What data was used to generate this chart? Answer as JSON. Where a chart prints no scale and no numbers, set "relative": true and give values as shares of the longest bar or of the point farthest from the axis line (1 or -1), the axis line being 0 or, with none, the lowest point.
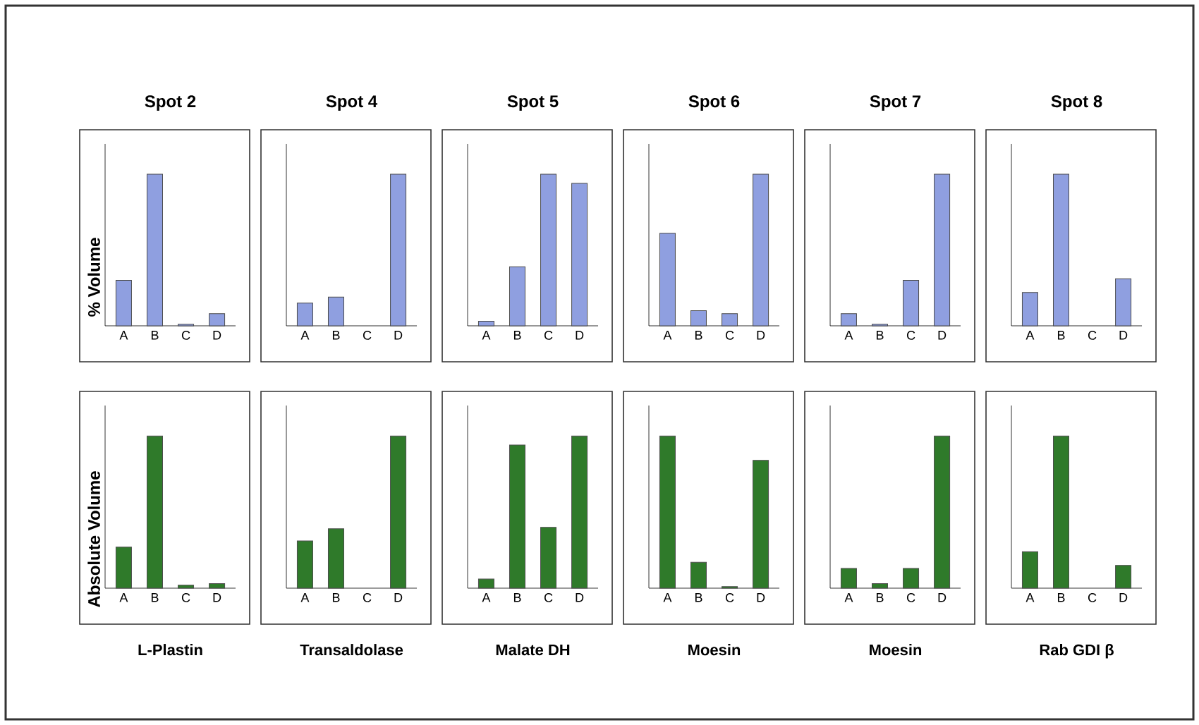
{
  "chart_data": [
    {
      "type": "bar",
      "title": "Spot 2",
      "ylabel": "% Volume",
      "relative": true,
      "color": "#8f9fe0",
      "categories": [
        "A",
        "B",
        "C",
        "D"
      ],
      "values": [
        0.3,
        1,
        0.01,
        0.08
      ]
    },
    {
      "type": "bar",
      "title": "Spot 4",
      "relative": true,
      "color": "#8f9fe0",
      "categories": [
        "A",
        "B",
        "C",
        "D"
      ],
      "values": [
        0.15,
        0.19,
        null,
        1
      ]
    },
    {
      "type": "bar",
      "title": "Spot 5",
      "relative": true,
      "color": "#8f9fe0",
      "categories": [
        "A",
        "B",
        "C",
        "D"
      ],
      "values": [
        0.03,
        0.39,
        1,
        0.94
      ]
    },
    {
      "type": "bar",
      "title": "Spot 6",
      "relative": true,
      "color": "#8f9fe0",
      "categories": [
        "A",
        "B",
        "C",
        "D"
      ],
      "values": [
        0.61,
        0.1,
        0.08,
        1
      ]
    },
    {
      "type": "bar",
      "title": "Spot 7",
      "relative": true,
      "color": "#8f9fe0",
      "categories": [
        "A",
        "B",
        "C",
        "D"
      ],
      "values": [
        0.08,
        0.01,
        0.3,
        1
      ]
    },
    {
      "type": "bar",
      "title": "Spot 8",
      "relative": true,
      "color": "#8f9fe0",
      "categories": [
        "A",
        "B",
        "C",
        "D"
      ],
      "values": [
        0.22,
        1,
        null,
        0.31
      ]
    },
    {
      "type": "bar",
      "xlabel": "L-Plastin",
      "ylabel": "Absolute Volume",
      "relative": true,
      "color": "#2f7a2a",
      "categories": [
        "A",
        "B",
        "C",
        "D"
      ],
      "values": [
        0.27,
        1,
        0.02,
        0.03
      ]
    },
    {
      "type": "bar",
      "xlabel": "Transaldolase",
      "relative": true,
      "color": "#2f7a2a",
      "categories": [
        "A",
        "B",
        "C",
        "D"
      ],
      "values": [
        0.31,
        0.39,
        null,
        1
      ]
    },
    {
      "type": "bar",
      "xlabel": "Malate DH",
      "relative": true,
      "color": "#2f7a2a",
      "categories": [
        "A",
        "B",
        "C",
        "D"
      ],
      "values": [
        0.06,
        0.94,
        0.4,
        1
      ]
    },
    {
      "type": "bar",
      "xlabel": "Moesin",
      "relative": true,
      "color": "#2f7a2a",
      "categories": [
        "A",
        "B",
        "C",
        "D"
      ],
      "values": [
        1,
        0.17,
        0.01,
        0.84
      ]
    },
    {
      "type": "bar",
      "xlabel": "Moesin",
      "relative": true,
      "color": "#2f7a2a",
      "categories": [
        "A",
        "B",
        "C",
        "D"
      ],
      "values": [
        0.13,
        0.03,
        0.13,
        1
      ]
    },
    {
      "type": "bar",
      "xlabel": "Rab GDI β",
      "relative": true,
      "color": "#2f7a2a",
      "categories": [
        "A",
        "B",
        "C",
        "D"
      ],
      "values": [
        0.24,
        1,
        null,
        0.15
      ]
    }
  ]
}
